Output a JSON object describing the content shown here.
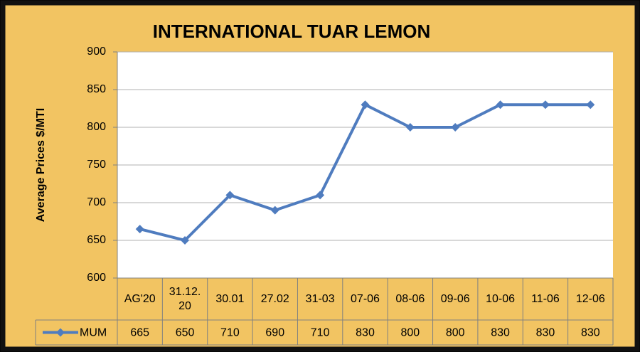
{
  "chart_data": {
    "type": "line",
    "title": "INTERNATIONAL TUAR LEMON",
    "y_label": "Average Prices  $/MTI",
    "categories": [
      "AG'20",
      "31.12.20",
      "30.01",
      "27.02",
      "31-03",
      "07-06",
      "08-06",
      "09-06",
      "10-06",
      "11-06",
      "12-06"
    ],
    "series": [
      {
        "name": "MUM",
        "color": "#4f7cbf",
        "values": [
          665,
          650,
          710,
          690,
          710,
          830,
          800,
          800,
          830,
          830,
          830
        ]
      }
    ],
    "ylim": [
      600,
      900
    ],
    "yticks": [
      600,
      650,
      700,
      750,
      800,
      850,
      900
    ],
    "grid": true,
    "data_table": true
  }
}
